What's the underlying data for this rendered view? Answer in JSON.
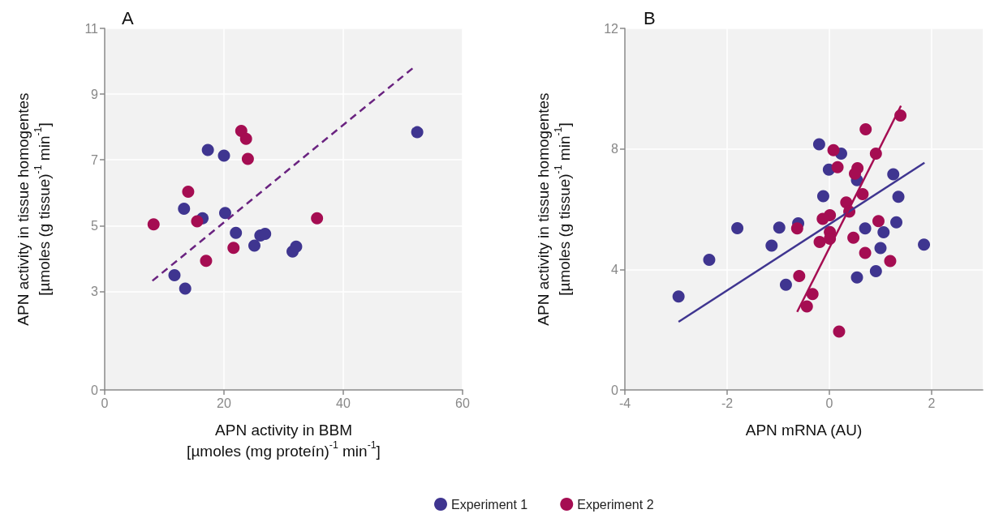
{
  "chart_data": [
    {
      "type": "scatter",
      "title": "A",
      "xlabel": "APN activity in BBM\n[µmoles (mg proteín)$^{-1}$ min$^{-1}$]",
      "ylabel": "APN activity in tissue homogentes\n[µmoles (g tissue)$^{-1}$ min$^{-1}$]",
      "xlim": [
        0,
        60
      ],
      "xticks": [
        0,
        20,
        40,
        60
      ],
      "ylim": [
        0,
        11
      ],
      "yticks": [
        0,
        3,
        5,
        7,
        9,
        11
      ],
      "grid": true,
      "legend": false,
      "marker": "circle",
      "series": [
        {
          "color": "#3f3590",
          "x": [
            17.3,
            20.0,
            13.3,
            16.4,
            20.2,
            22.0,
            25.1,
            26.1,
            26.9,
            31.5,
            32.1,
            11.7,
            13.5,
            52.4
          ],
          "values": [
            7.3,
            7.13,
            5.51,
            5.22,
            5.38,
            4.78,
            4.39,
            4.7,
            4.75,
            4.21,
            4.36,
            3.49,
            3.08,
            7.84
          ]
        },
        {
          "color": "#a50d52",
          "x": [
            22.9,
            23.7,
            24.0,
            14.0,
            8.2,
            15.5,
            35.6,
            21.6,
            17.0
          ],
          "values": [
            7.88,
            7.64,
            7.03,
            6.03,
            5.04,
            5.13,
            5.22,
            4.32,
            3.93
          ]
        },
        {
          "type": "line",
          "color": "#6a2380",
          "line_style": "dashed",
          "marker": "none",
          "x": [
            8.0,
            52.0
          ],
          "values": [
            3.32,
            9.84
          ]
        }
      ]
    },
    {
      "type": "scatter",
      "title": "B",
      "xlabel": "APN mRNA (AU)",
      "ylabel": "APN activity in tissue homogentes\n[µmoles (g tissue)$^{-1}$ min$^{-1}$]",
      "xlim": [
        -4,
        3
      ],
      "xticks": [
        -4,
        -2,
        0,
        2
      ],
      "ylim": [
        0,
        12
      ],
      "yticks": [
        0,
        4,
        8,
        12
      ],
      "grid": true,
      "legend": "bottom",
      "marker": "circle",
      "series": [
        {
          "name": "Experiment 1",
          "color": "#3f3590",
          "x": [
            -2.95,
            -2.35,
            -1.8,
            -1.13,
            -0.98,
            -0.85,
            -0.61,
            -0.2,
            0.23,
            -0.01,
            -0.12,
            0.54,
            1.25,
            1.35,
            1.31,
            0.7,
            1.06,
            1.0,
            0.91,
            0.54,
            1.85
          ],
          "values": [
            3.1,
            4.32,
            5.37,
            4.79,
            5.39,
            3.49,
            5.53,
            8.15,
            7.84,
            7.31,
            6.43,
            6.96,
            7.16,
            6.41,
            5.56,
            5.36,
            5.23,
            4.71,
            3.94,
            3.73,
            4.82
          ]
        },
        {
          "name": "Experiment 2",
          "color": "#a50d52",
          "x": [
            1.39,
            0.71,
            0.08,
            0.91,
            0.16,
            0.55,
            0.5,
            0.65,
            0.33,
            0.39,
            0.01,
            -0.13,
            -0.63,
            0.96,
            0.01,
            0.01,
            -0.19,
            0.47,
            0.7,
            1.19,
            -0.59,
            -0.33,
            -0.44,
            0.19
          ],
          "values": [
            9.11,
            8.65,
            7.96,
            7.84,
            7.39,
            7.36,
            7.18,
            6.5,
            6.22,
            5.92,
            5.8,
            5.68,
            5.36,
            5.6,
            5.24,
            5.02,
            4.91,
            5.05,
            4.55,
            4.28,
            3.78,
            3.18,
            2.77,
            1.94
          ]
        },
        {
          "type": "line",
          "color": "#3f3590",
          "line_style": "solid",
          "marker": "none",
          "x": [
            -2.95,
            1.86
          ],
          "values": [
            2.26,
            7.54
          ]
        },
        {
          "type": "line",
          "color": "#a50d52",
          "line_style": "solid",
          "marker": "none",
          "x": [
            -0.63,
            1.4
          ],
          "values": [
            2.59,
            9.43
          ]
        }
      ]
    }
  ]
}
